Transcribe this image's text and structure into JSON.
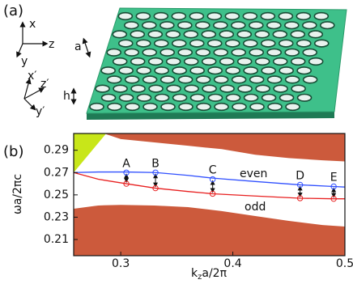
{
  "panel_a": {
    "label": "(a)",
    "axes1": [
      "x",
      "z",
      "y"
    ],
    "axes2": [
      "x′",
      "z′",
      "y′"
    ],
    "period": "a",
    "thickness": "h"
  },
  "chart_data": {
    "type": "line",
    "panel_label": "(b)",
    "ylabel": "ωa/2πc",
    "xlabel": [
      "k",
      "z",
      "a/2π"
    ],
    "xlim": [
      0.258,
      0.5
    ],
    "ylim": [
      0.1955,
      0.305
    ],
    "xticks": [
      0.3,
      0.4,
      0.5
    ],
    "yticks": [
      0.21,
      0.23,
      0.25,
      0.27,
      0.29
    ],
    "x": [
      0.258,
      0.28,
      0.305,
      0.331,
      0.36,
      0.382,
      0.42,
      0.46,
      0.49,
      0.5
    ],
    "series": [
      {
        "name": "even",
        "color": "#3050ff",
        "values": [
          0.27,
          0.2705,
          0.2705,
          0.27,
          0.2675,
          0.265,
          0.262,
          0.259,
          0.2575,
          0.257
        ]
      },
      {
        "name": "odd",
        "color": "#e82020",
        "values": [
          0.27,
          0.264,
          0.26,
          0.256,
          0.253,
          0.251,
          0.249,
          0.247,
          0.2465,
          0.2465
        ]
      }
    ],
    "regions": [
      {
        "color": "#cc5a3c",
        "side": "top",
        "x": [
          0.258,
          0.285,
          0.3,
          0.33,
          0.36,
          0.39,
          0.42,
          0.45,
          0.48,
          0.5
        ],
        "values": [
          0.305,
          0.305,
          0.3,
          0.297,
          0.294,
          0.291,
          0.286,
          0.283,
          0.281,
          0.28
        ]
      },
      {
        "color": "#cc5a3c",
        "side": "bottom",
        "x": [
          0.258,
          0.28,
          0.3,
          0.33,
          0.36,
          0.39,
          0.42,
          0.45,
          0.48,
          0.5
        ],
        "values": [
          0.2376,
          0.2405,
          0.241,
          0.2405,
          0.239,
          0.2355,
          0.231,
          0.2267,
          0.223,
          0.2216
        ]
      },
      {
        "color": "#c8e619",
        "side": "top",
        "x": [
          0.258,
          0.287
        ],
        "values": [
          0.27,
          0.305
        ]
      }
    ],
    "points": {
      "labels": [
        "A",
        "B",
        "C",
        "D",
        "E"
      ],
      "x": [
        0.305,
        0.331,
        0.382,
        0.46,
        0.49
      ],
      "even": [
        0.27,
        0.27,
        0.264,
        0.259,
        0.2575
      ],
      "odd": [
        0.26,
        0.256,
        0.251,
        0.247,
        0.2465
      ]
    }
  }
}
